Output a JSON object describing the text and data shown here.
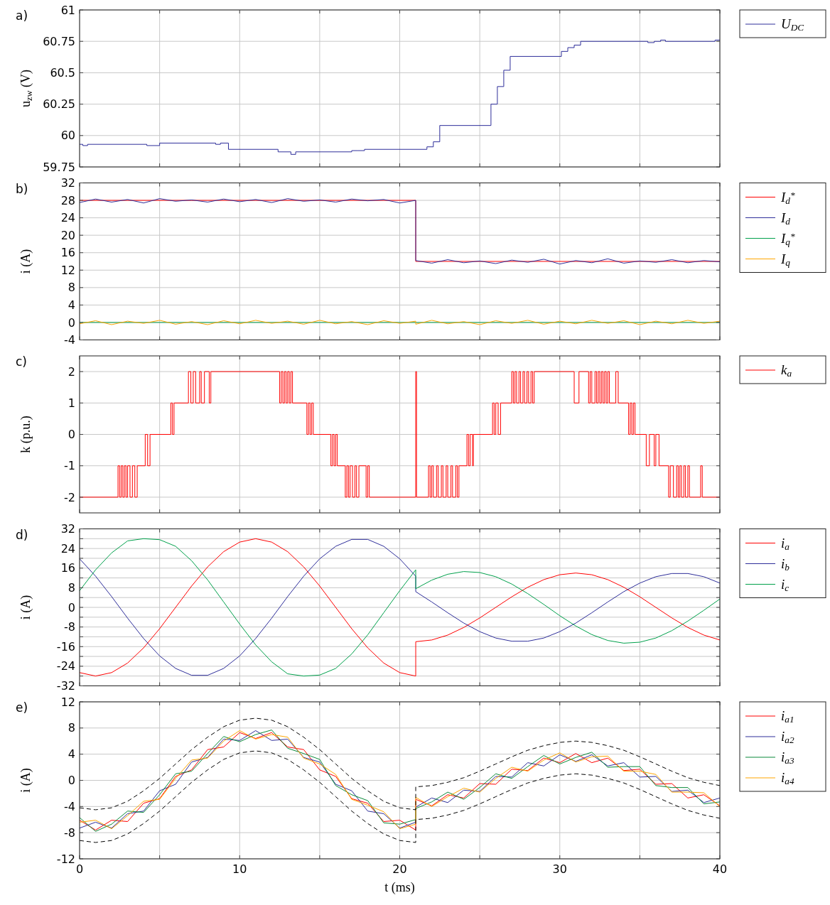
{
  "chart_data": [
    {
      "type": "step",
      "annotations": [
        "a)"
      ],
      "ylabel": "u$_{zw}$ (V)",
      "xlim": [
        0,
        40
      ],
      "xticks": [
        0,
        {
          "value": 5,
          "label": null
        },
        10,
        {
          "value": 15,
          "label": null
        },
        20,
        {
          "value": 25,
          "label": null
        },
        30,
        {
          "value": 35,
          "label": null
        },
        40
      ],
      "ylim": [
        59.75,
        61
      ],
      "yticks": [
        59.75,
        60,
        60.25,
        60.5,
        60.75,
        61
      ],
      "tick_labels": "y",
      "grid": true,
      "legend": "right",
      "series": [
        {
          "name": "U$_{DC}$",
          "color": "#2e2e9a",
          "x": [
            0,
            0.2,
            0.5,
            4.2,
            5,
            8.5,
            8.8,
            9.3,
            12.4,
            13.2,
            13.5,
            17,
            17.4,
            17.8,
            21.7,
            22.1,
            22.5,
            25.7,
            26.1,
            26.5,
            26.9,
            30.1,
            30.5,
            30.9,
            31.3,
            35.5,
            35.9,
            36.3,
            36.6,
            39.7,
            40
          ],
          "values": [
            59.93,
            59.92,
            59.93,
            59.92,
            59.94,
            59.93,
            59.94,
            59.89,
            59.87,
            59.85,
            59.87,
            59.88,
            59.88,
            59.89,
            59.91,
            59.95,
            60.08,
            60.25,
            60.39,
            60.52,
            60.63,
            60.67,
            60.7,
            60.72,
            60.75,
            60.74,
            60.75,
            60.76,
            60.75,
            60.76,
            60.76
          ]
        }
      ]
    },
    {
      "type": "line",
      "annotations": [
        "b)"
      ],
      "ylabel": "i (A)",
      "xlim": [
        0,
        40
      ],
      "xticks": [
        0,
        {
          "value": 5,
          "label": null
        },
        10,
        {
          "value": 15,
          "label": null
        },
        20,
        {
          "value": 25,
          "label": null
        },
        30,
        {
          "value": 35,
          "label": null
        },
        40
      ],
      "ylim": [
        -4,
        32
      ],
      "yticks": [
        -4,
        0,
        4,
        8,
        12,
        16,
        20,
        24,
        28,
        32
      ],
      "tick_labels": "y",
      "grid": true,
      "legend": "right",
      "series": [
        {
          "name": "I$_{d}$$^{*}$",
          "color": "#ff0000",
          "x": [
            0,
            21,
            21,
            40
          ],
          "values": [
            28,
            28,
            14,
            14
          ]
        },
        {
          "name": "I$_{d}$",
          "color": "#2e2e9a",
          "x": [
            0,
            1,
            2,
            3,
            4,
            5,
            6,
            7,
            8,
            9,
            10,
            11,
            12,
            13,
            14,
            15,
            16,
            17,
            18,
            19,
            20,
            21,
            21,
            22,
            23,
            24,
            25,
            26,
            27,
            28,
            29,
            30,
            31,
            32,
            33,
            34,
            35,
            36,
            37,
            38,
            39,
            40
          ],
          "values": [
            27.5,
            28.3,
            27.6,
            28.2,
            27.4,
            28.4,
            27.8,
            28.1,
            27.6,
            28.3,
            27.7,
            28.2,
            27.5,
            28.4,
            27.8,
            28.1,
            27.6,
            28.3,
            27.9,
            28.2,
            27.4,
            28.0,
            14.2,
            13.6,
            14.4,
            13.7,
            14.1,
            13.5,
            14.3,
            13.8,
            14.5,
            13.4,
            14.2,
            13.7,
            14.6,
            13.6,
            14.1,
            13.8,
            14.4,
            13.7,
            14.2,
            13.9
          ]
        },
        {
          "name": "I$_{q}$$^{*}$",
          "color": "#00a04b",
          "x": [
            0,
            40
          ],
          "values": [
            0,
            0
          ]
        },
        {
          "name": "I$_{q}$",
          "color": "#ffa500",
          "x": [
            0,
            1,
            2,
            3,
            4,
            5,
            6,
            7,
            8,
            9,
            10,
            11,
            12,
            13,
            14,
            15,
            16,
            17,
            18,
            19,
            20,
            21,
            21,
            22,
            23,
            24,
            25,
            26,
            27,
            28,
            29,
            30,
            31,
            32,
            33,
            34,
            35,
            36,
            37,
            38,
            39,
            40
          ],
          "values": [
            -0.3,
            0.4,
            -0.5,
            0.3,
            -0.2,
            0.5,
            -0.4,
            0.2,
            -0.5,
            0.4,
            -0.3,
            0.5,
            -0.2,
            0.3,
            -0.4,
            0.5,
            -0.3,
            0.2,
            -0.5,
            0.4,
            -0.2,
            0.3,
            -0.4,
            0.5,
            -0.3,
            0.2,
            -0.5,
            0.4,
            -0.2,
            0.5,
            -0.4,
            0.3,
            -0.3,
            0.5,
            -0.2,
            0.4,
            -0.5,
            0.3,
            -0.3,
            0.5,
            -0.2,
            0.3
          ]
        }
      ]
    },
    {
      "type": "step",
      "annotations": [
        "c)"
      ],
      "ylabel": "k (p.u.)",
      "xlim": [
        0,
        40
      ],
      "xticks": [
        0,
        {
          "value": 5,
          "label": null
        },
        10,
        {
          "value": 15,
          "label": null
        },
        20,
        {
          "value": 25,
          "label": null
        },
        30,
        {
          "value": 35,
          "label": null
        },
        40
      ],
      "ylim": [
        -2.5,
        2.5
      ],
      "yticks": [
        -2,
        -1,
        0,
        1,
        2
      ],
      "tick_labels": "y",
      "grid": true,
      "legend": "right",
      "series": [
        {
          "name": "k$_{a}$",
          "color": "#ff0000",
          "x": [
            0,
            2.4,
            2.5,
            2.6,
            2.7,
            2.8,
            2.9,
            3.0,
            3.15,
            3.3,
            3.45,
            3.6,
            4.1,
            4.25,
            4.4,
            5.7,
            5.8,
            5.9,
            6.8,
            6.95,
            7.1,
            7.25,
            7.5,
            7.6,
            7.8,
            8.1,
            8.2,
            12.5,
            12.6,
            12.7,
            12.8,
            12.9,
            13.0,
            13.1,
            13.2,
            13.3,
            14.2,
            14.3,
            14.4,
            14.5,
            14.6,
            15.7,
            15.8,
            15.9,
            16.0,
            16.1,
            16.6,
            16.7,
            16.8,
            16.9,
            17.05,
            17.2,
            17.3,
            17.45,
            17.9,
            18.0,
            18.1,
            21.0,
            21.05,
            21.8,
            21.9,
            22.0,
            22.1,
            22.3,
            22.4,
            22.6,
            22.7,
            22.9,
            23.0,
            23.2,
            23.3,
            23.5,
            23.6,
            23.7,
            24.2,
            24.3,
            24.4,
            24.55,
            24.6,
            25.8,
            25.9,
            26.0,
            26.15,
            26.3,
            27.0,
            27.1,
            27.2,
            27.3,
            27.45,
            27.55,
            27.7,
            27.8,
            27.95,
            28.05,
            28.2,
            28.3,
            28.4,
            30.9,
            31.2,
            31.8,
            31.9,
            32.0,
            32.2,
            32.3,
            32.4,
            32.5,
            32.6,
            32.7,
            32.8,
            32.9,
            33.0,
            33.1,
            33.5,
            33.65,
            34.3,
            34.4,
            34.5,
            34.6,
            34.7,
            35.4,
            35.6,
            35.9,
            36.0,
            36.2,
            36.8,
            36.9,
            37.1,
            37.3,
            37.4,
            37.5,
            37.6,
            37.75,
            37.85,
            38.0,
            38.1,
            38.8,
            38.9,
            40
          ],
          "values": [
            -2,
            -1,
            -2,
            -1,
            -2,
            -1,
            -2,
            -1,
            -2,
            -1,
            -2,
            -1,
            0,
            -1,
            0,
            1,
            0,
            1,
            2,
            1,
            2,
            1,
            2,
            1,
            2,
            1,
            2,
            1,
            2,
            1,
            2,
            1,
            2,
            1,
            2,
            1,
            0,
            1,
            0,
            1,
            0,
            -1,
            0,
            -1,
            0,
            -1,
            -2,
            -1,
            -2,
            -1,
            -2,
            -1,
            -2,
            -1,
            -2,
            -1,
            -2,
            2,
            -2,
            -1,
            -2,
            -1,
            -2,
            -1,
            -2,
            -1,
            -2,
            -1,
            -2,
            -1,
            -2,
            -1,
            -2,
            -1,
            0,
            -1,
            0,
            -1,
            0,
            1,
            0,
            1,
            0,
            1,
            2,
            1,
            2,
            1,
            2,
            1,
            2,
            1,
            2,
            1,
            2,
            1,
            2,
            1,
            2,
            1,
            2,
            1,
            2,
            1,
            2,
            1,
            2,
            1,
            2,
            1,
            2,
            1,
            2,
            1,
            0,
            1,
            0,
            1,
            0,
            -1,
            0,
            -1,
            0,
            -1,
            -2,
            -1,
            -2,
            -1,
            -2,
            -1,
            -2,
            -1,
            -2,
            -1,
            -2,
            -1,
            -2,
            -2
          ]
        }
      ]
    },
    {
      "type": "line",
      "annotations": [
        "d)"
      ],
      "ylabel": "i (A)",
      "xlim": [
        0,
        40
      ],
      "xticks": [
        0,
        {
          "value": 5,
          "label": null
        },
        10,
        {
          "value": 15,
          "label": null
        },
        20,
        {
          "value": 25,
          "label": null
        },
        30,
        {
          "value": 35,
          "label": null
        },
        40
      ],
      "ylim": [
        -32,
        32
      ],
      "yticks": [
        -32,
        {
          "value": -28,
          "label": null
        },
        -24,
        {
          "value": -20,
          "label": null
        },
        -16,
        {
          "value": -12,
          "label": null
        },
        -8,
        {
          "value": -4,
          "label": null
        },
        0,
        {
          "value": 4,
          "label": null
        },
        8,
        {
          "value": 12,
          "label": null
        },
        16,
        {
          "value": 20,
          "label": null
        },
        24,
        {
          "value": 28,
          "label": null
        },
        32
      ],
      "tick_labels": "y",
      "grid": true,
      "legend": "right",
      "x": [
        0,
        1,
        2,
        3,
        4,
        5,
        6,
        7,
        8,
        9,
        10,
        11,
        12,
        13,
        14,
        15,
        16,
        17,
        18,
        19,
        20,
        21,
        21,
        22,
        23,
        24,
        25,
        26,
        27,
        28,
        29,
        30,
        31,
        32,
        33,
        34,
        35,
        36,
        37,
        38,
        39,
        40
      ],
      "series": [
        {
          "name": "i$_{a}$",
          "color": "#ff0000",
          "values": [
            -26.6,
            -28,
            -26.6,
            -22.7,
            -16.5,
            -8.7,
            0,
            8.7,
            16.5,
            22.7,
            26.6,
            28,
            26.6,
            22.7,
            16.5,
            8.7,
            0,
            -8.7,
            -16.5,
            -22.7,
            -26.6,
            -28,
            -14,
            -13.3,
            -11.3,
            -8.2,
            -4.3,
            0,
            4.3,
            8.2,
            11.3,
            13.3,
            14,
            13.3,
            11.3,
            8.2,
            4.3,
            0,
            -4.3,
            -8.2,
            -11.3,
            -13.3
          ]
        },
        {
          "name": "i$_{b}$",
          "color": "#2e2e9a",
          "values": [
            19.8,
            12.7,
            4.4,
            -4.4,
            -12.7,
            -19.8,
            -24.9,
            -27.7,
            -27.7,
            -24.9,
            -19.8,
            -12.7,
            -4.4,
            4.4,
            12.7,
            19.8,
            24.9,
            27.7,
            27.7,
            24.9,
            19.8,
            12.7,
            6.4,
            2.2,
            -2.2,
            -6.4,
            -9.9,
            -12.5,
            -13.8,
            -13.8,
            -12.5,
            -9.9,
            -6.4,
            -2.2,
            2.2,
            6.4,
            9.9,
            12.5,
            13.8,
            13.8,
            12.5,
            9.9
          ]
        },
        {
          "name": "i$_{c}$",
          "color": "#00a04b",
          "values": [
            6.8,
            15.3,
            22.2,
            27.1,
            28,
            27.6,
            24.9,
            19,
            11.2,
            2.2,
            -6.8,
            -15.3,
            -22.2,
            -27.1,
            -28,
            -27.6,
            -24.9,
            -19,
            -11.2,
            -2.2,
            6.8,
            15.3,
            7.6,
            11.1,
            13.5,
            14.6,
            14.2,
            12.5,
            9.5,
            5.6,
            1.2,
            -3.4,
            -7.6,
            -11.1,
            -13.5,
            -14.6,
            -14.2,
            -12.5,
            -9.5,
            -5.6,
            -1.2,
            3.4
          ]
        }
      ]
    },
    {
      "type": "line",
      "annotations": [
        "e)"
      ],
      "xlabel": "t (ms)",
      "ylabel": "i (A)",
      "xlim": [
        0,
        40
      ],
      "xticks": [
        0,
        {
          "value": 5,
          "label": null
        },
        10,
        {
          "value": 15,
          "label": null
        },
        20,
        {
          "value": 25,
          "label": null
        },
        30,
        {
          "value": 35,
          "label": null
        },
        40
      ],
      "ylim": [
        -12,
        12
      ],
      "yticks": [
        -12,
        -8,
        -4,
        0,
        4,
        8,
        12
      ],
      "grid": true,
      "legend": "right",
      "x": [
        0,
        1,
        2,
        3,
        4,
        5,
        6,
        7,
        8,
        9,
        10,
        11,
        12,
        13,
        14,
        15,
        16,
        17,
        18,
        19,
        20,
        21,
        21,
        22,
        23,
        24,
        25,
        26,
        27,
        28,
        29,
        30,
        31,
        32,
        33,
        34,
        35,
        36,
        37,
        38,
        39,
        40
      ],
      "series": [
        {
          "name": "i$_{a1}$",
          "color": "#ff0000",
          "values": [
            -6.1,
            -7.6,
            -6.1,
            -6.3,
            -3.5,
            -2.8,
            0.6,
            1.6,
            4.7,
            5.1,
            7.3,
            6.4,
            7.3,
            5.1,
            4.7,
            1.6,
            0.6,
            -2.8,
            -3.5,
            -6.3,
            -6.1,
            -7.6,
            -2.9,
            -3.9,
            -2.2,
            -2.7,
            -0.5,
            -0.6,
            1.7,
            1.5,
            3.4,
            2.7,
            4.1,
            2.7,
            3.4,
            1.5,
            1.7,
            -0.6,
            -0.5,
            -2.7,
            -2.2,
            -3.9
          ]
        },
        {
          "name": "i$_{a2}$",
          "color": "#2e2e9a",
          "values": [
            -7.3,
            -6.4,
            -7.3,
            -5.1,
            -4.7,
            -1.6,
            -0.6,
            2.8,
            3.5,
            6.3,
            6.1,
            7.6,
            6.1,
            6.3,
            3.5,
            2.8,
            -0.6,
            -1.6,
            -4.7,
            -5.1,
            -7.3,
            -6.4,
            -4.1,
            -2.7,
            -3.4,
            -1.5,
            -1.7,
            0.6,
            0.5,
            2.7,
            2.2,
            3.9,
            2.9,
            3.9,
            2.2,
            2.7,
            0.5,
            0.6,
            -1.7,
            -1.5,
            -3.4,
            -2.7
          ]
        },
        {
          "name": "i$_{a3}$",
          "color": "#0b8a3a",
          "values": [
            -5.7,
            -7.8,
            -6.7,
            -4.7,
            -4.9,
            -2.2,
            1.0,
            1.4,
            4.1,
            6.7,
            5.9,
            7.0,
            7.7,
            4.9,
            4.1,
            3.2,
            -0.8,
            -2.2,
            -3.1,
            -6.5,
            -6.7,
            -6.0,
            -4.3,
            -3.3,
            -1.8,
            -2.9,
            -1.1,
            1.0,
            0.3,
            2.1,
            3.8,
            2.5,
            3.5,
            4.3,
            2.0,
            2.1,
            2.1,
            -0.8,
            -1.1,
            -1.1,
            -3.6,
            -3.3
          ]
        },
        {
          "name": "i$_{a4}$",
          "color": "#ffa500",
          "values": [
            -6.4,
            -6.1,
            -7.4,
            -5.4,
            -3.2,
            -2.9,
            0.3,
            3.1,
            3.4,
            6.0,
            7.6,
            6.3,
            7.0,
            6.6,
            3.4,
            2.5,
            0.9,
            -2.9,
            -3.8,
            -4.8,
            -7.4,
            -6.7,
            -2.6,
            -4.0,
            -2.5,
            -1.2,
            -1.8,
            0.3,
            2.0,
            1.4,
            3.1,
            4.2,
            2.8,
            3.6,
            3.7,
            1.4,
            1.4,
            0.9,
            -1.8,
            -1.8,
            -1.9,
            -4.0
          ]
        },
        {
          "color": "#000000",
          "line_style": "dashed",
          "values": [
            -4.2,
            -4.5,
            -4.2,
            -3.2,
            -1.6,
            0.3,
            2.5,
            4.7,
            6.6,
            8.2,
            9.2,
            9.5,
            9.2,
            8.2,
            6.6,
            4.7,
            2.5,
            0.3,
            -1.6,
            -3.2,
            -4.2,
            -4.5,
            -1.0,
            -0.8,
            -0.3,
            0.4,
            1.4,
            2.5,
            3.6,
            4.6,
            5.3,
            5.8,
            6.0,
            5.8,
            5.3,
            4.6,
            3.6,
            2.5,
            1.4,
            0.4,
            -0.3,
            -0.8
          ]
        },
        {
          "color": "#000000",
          "line_style": "dashed",
          "values": [
            -9.2,
            -9.5,
            -9.2,
            -8.2,
            -6.6,
            -4.7,
            -2.5,
            -0.3,
            1.6,
            3.2,
            4.2,
            4.5,
            4.2,
            3.2,
            1.6,
            -0.3,
            -2.5,
            -4.7,
            -6.6,
            -8.2,
            -9.2,
            -9.5,
            -6.0,
            -5.8,
            -5.3,
            -4.6,
            -3.6,
            -2.5,
            -1.4,
            -0.4,
            0.3,
            0.8,
            1.0,
            0.8,
            0.3,
            -0.4,
            -1.4,
            -2.5,
            -3.6,
            -4.6,
            -5.3,
            -5.8
          ]
        }
      ]
    }
  ]
}
